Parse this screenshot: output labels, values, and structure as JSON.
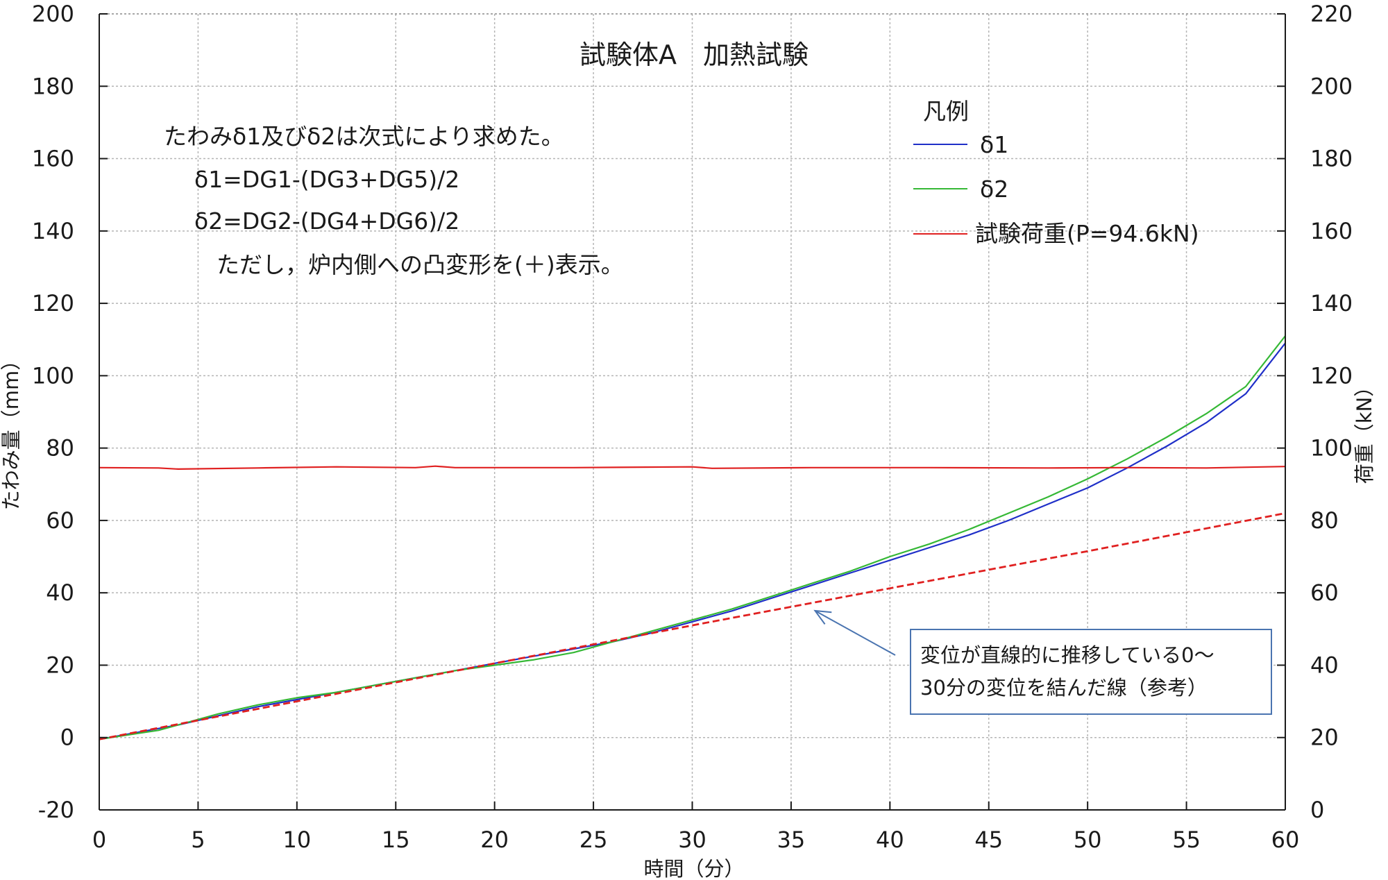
{
  "chart_data": {
    "type": "line",
    "title": "試験体A　加熱試験",
    "xlabel": "時間（分）",
    "ylabel": "たわみ量（mm）",
    "y2label": "荷重（kN）",
    "xlim": [
      0,
      60
    ],
    "ylim": [
      -20,
      200
    ],
    "y2lim": [
      0,
      220
    ],
    "x_ticks": [
      0,
      5,
      10,
      15,
      20,
      25,
      30,
      35,
      40,
      45,
      50,
      55,
      60
    ],
    "y_ticks": [
      -20,
      0,
      20,
      40,
      60,
      80,
      100,
      120,
      140,
      160,
      180,
      200
    ],
    "y2_ticks": [
      0,
      20,
      40,
      60,
      80,
      100,
      120,
      140,
      160,
      180,
      200,
      220
    ],
    "grid": true,
    "legend": {
      "title": "凡例",
      "position": "top-right"
    },
    "notes": [
      "たわみδ1及びδ2は次式により求めた。",
      "δ1=DG1-(DG3+DG5)/2",
      "δ2=DG2-(DG4+DG6)/2",
      "ただし，炉内側への凸変形を(＋)表示。"
    ],
    "annotation": {
      "lines": [
        "変位が直線的に推移している0～",
        "30分の変位を結んだ線（参考）"
      ],
      "points_to": [
        36,
        36
      ]
    },
    "series": [
      {
        "name": "δ1",
        "color": "#1f2fc8",
        "axis": "left",
        "x": [
          0,
          2,
          4,
          6,
          8,
          10,
          12,
          14,
          16,
          18,
          20,
          22,
          24,
          26,
          28,
          30,
          32,
          34,
          36,
          38,
          40,
          42,
          44,
          46,
          48,
          50,
          52,
          54,
          56,
          58,
          60
        ],
        "y": [
          -0.5,
          1.5,
          3.5,
          6,
          8.5,
          10.5,
          12.5,
          14.5,
          16.5,
          18.5,
          20.5,
          22.5,
          24.5,
          26.5,
          29,
          32,
          35,
          38.5,
          42,
          45.5,
          49,
          52.5,
          56,
          60,
          64.5,
          69,
          74.5,
          80.5,
          87,
          95,
          109
        ]
      },
      {
        "name": "δ2",
        "color": "#35b835",
        "axis": "left",
        "x": [
          0,
          2,
          3,
          4,
          6,
          8,
          10,
          12,
          14,
          16,
          18,
          20,
          22,
          24,
          26,
          28,
          30,
          32,
          34,
          36,
          38,
          40,
          42,
          44,
          46,
          48,
          50,
          52,
          54,
          56,
          58,
          60
        ],
        "y": [
          -0.5,
          1.2,
          2,
          3.5,
          6.5,
          9,
          11,
          12.5,
          14.5,
          16.5,
          18.5,
          20,
          21.5,
          23.5,
          26.5,
          29.5,
          32.5,
          35.5,
          39,
          42.5,
          46,
          50,
          53.5,
          57.5,
          62,
          66.5,
          71.5,
          77,
          83,
          89.5,
          97,
          111
        ]
      },
      {
        "name": "試験荷重(P=94.6kN)",
        "color": "#e02020",
        "axis": "right",
        "x": [
          0,
          3,
          4,
          8,
          12,
          16,
          17,
          18,
          24,
          30,
          31,
          36,
          42,
          48,
          52,
          56,
          60
        ],
        "y": [
          94.6,
          94.5,
          94.2,
          94.5,
          94.8,
          94.6,
          95,
          94.6,
          94.6,
          94.8,
          94.4,
          94.6,
          94.6,
          94.5,
          94.6,
          94.5,
          94.9
        ]
      },
      {
        "name": "",
        "color": "#e02020",
        "dashed": true,
        "axis": "left",
        "x": [
          0,
          30,
          50,
          60
        ],
        "y": [
          -0.5,
          31,
          51.5,
          62
        ]
      }
    ]
  }
}
